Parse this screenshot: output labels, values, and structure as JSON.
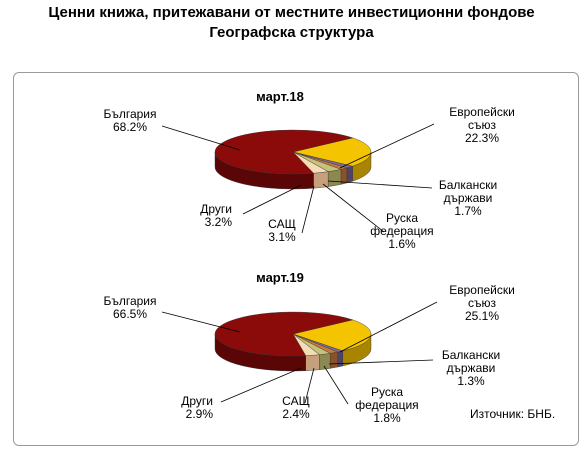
{
  "title_line1": "Ценни книжа, притежавани от местните инвестиционни фондове",
  "title_line2": "Географска структура",
  "source": "Източник: БНБ.",
  "chart_data": [
    {
      "type": "pie",
      "title": "март.18",
      "slices": [
        {
          "name": "Европейски съюз",
          "lines": [
            "Европейски",
            "съюз"
          ],
          "value": 22.3,
          "value_label": "22.3%",
          "color": "#f4c400",
          "side": "#a88400"
        },
        {
          "name": "Балкански държави",
          "lines": [
            "Балкански",
            "държави"
          ],
          "value": 1.7,
          "value_label": "1.7%",
          "color": "#7c6a9c",
          "side": "#4f4266"
        },
        {
          "name": "Руска федерация",
          "lines": [
            "Руска",
            "федерация"
          ],
          "value": 1.6,
          "value_label": "1.6%",
          "color": "#c77a3c",
          "side": "#8a5226"
        },
        {
          "name": "САЩ",
          "lines": [
            "САЩ"
          ],
          "value": 3.1,
          "value_label": "3.1%",
          "color": "#c6c27a",
          "side": "#8c8850"
        },
        {
          "name": "Други",
          "lines": [
            "Други"
          ],
          "value": 3.2,
          "value_label": "3.2%",
          "color": "#f6dcb4",
          "side": "#c6a07c"
        },
        {
          "name": "България",
          "lines": [
            "България"
          ],
          "value": 68.2,
          "value_label": "68.2%",
          "color": "#8b0a0a",
          "side": "#5a0606"
        }
      ]
    },
    {
      "type": "pie",
      "title": "март.19",
      "slices": [
        {
          "name": "Европейски съюз",
          "lines": [
            "Европейски",
            "съюз"
          ],
          "value": 25.1,
          "value_label": "25.1%",
          "color": "#f4c400",
          "side": "#a88400"
        },
        {
          "name": "Балкански държави",
          "lines": [
            "Балкански",
            "държави"
          ],
          "value": 1.3,
          "value_label": "1.3%",
          "color": "#7c6a9c",
          "side": "#4f4266"
        },
        {
          "name": "Руска федерация",
          "lines": [
            "Руска",
            "федерация"
          ],
          "value": 1.8,
          "value_label": "1.8%",
          "color": "#c77a3c",
          "side": "#8a5226"
        },
        {
          "name": "САЩ",
          "lines": [
            "САЩ"
          ],
          "value": 2.4,
          "value_label": "2.4%",
          "color": "#c6c27a",
          "side": "#8c8850"
        },
        {
          "name": "Други",
          "lines": [
            "Други"
          ],
          "value": 2.9,
          "value_label": "2.9%",
          "color": "#f6dcb4",
          "side": "#c6a07c"
        },
        {
          "name": "България",
          "lines": [
            "България"
          ],
          "value": 66.5,
          "value_label": "66.5%",
          "color": "#8b0a0a",
          "side": "#5a0606"
        }
      ]
    }
  ]
}
